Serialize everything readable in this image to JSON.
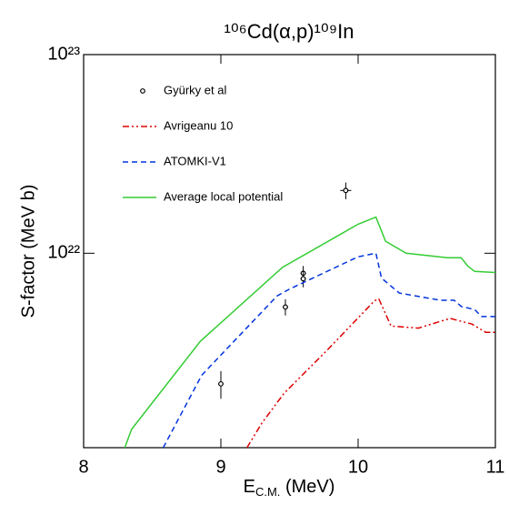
{
  "chart_data": {
    "type": "line",
    "title": "¹⁰⁶Cd(α,p)¹⁰⁹In",
    "x_label": [
      "E",
      "C.M.",
      " (MeV)"
    ],
    "y_label": "S-factor (MeV b)",
    "log_y": true,
    "xlim": [
      8,
      11
    ],
    "xticks": [
      8,
      9,
      10,
      11
    ],
    "ylim": [
      1.05e+21,
      1e+23
    ],
    "yticks": [
      {
        "value": 1e+22,
        "label": "10²²"
      },
      {
        "value": 1e+23,
        "label": "10²³"
      }
    ],
    "legend": "upper left",
    "series": [
      {
        "name": "Gyürky et al",
        "color": "#000000",
        "style": "points",
        "x": [
          9.0,
          9.47,
          9.6,
          9.6,
          9.91
        ],
        "x_errors": [
          0.02,
          0.02,
          0.02,
          0.02,
          0.04
        ],
        "values": [
          2.2e+21,
          5.36e+21,
          7.93e+21,
          7.44e+21,
          2.07e+22
        ],
        "errors": [
          3.5e+20,
          5e+20,
          7e+20,
          7e+20,
          2e+21
        ]
      },
      {
        "name": "Avrigeanu 10",
        "color": "#dd0000",
        "style": "dashdotdot",
        "x": [
          9.19,
          9.3,
          9.46,
          9.77,
          10.12,
          10.15,
          10.24,
          10.44,
          10.67,
          10.83,
          10.93,
          11.0
        ],
        "values": [
          1.05e+21,
          1.4e+21,
          1.97e+21,
          3.23e+21,
          5.77e+21,
          5.9e+21,
          4.3e+21,
          4.2e+21,
          4.7e+21,
          4.4e+21,
          4e+21,
          4e+21
        ]
      },
      {
        "name": "ATOMKI-V1",
        "color": "#0033dd",
        "style": "dashed",
        "x": [
          8.58,
          8.86,
          9.41,
          9.5,
          10.0,
          10.13,
          10.17,
          10.3,
          10.6,
          10.7,
          10.75,
          10.85,
          10.9,
          11.0
        ],
        "values": [
          1.05e+21,
          2.43e+21,
          6.1e+21,
          6.6e+21,
          9.6e+21,
          1e+22,
          7.5e+21,
          6.3e+21,
          5.8e+21,
          5.8e+21,
          5.4e+21,
          5.2e+21,
          4.8e+21,
          4.8e+21
        ]
      },
      {
        "name": "Average local potential",
        "color": "#33cc33",
        "style": "solid",
        "x": [
          8.3,
          8.35,
          8.85,
          9.45,
          10.0,
          10.13,
          10.2,
          10.35,
          10.65,
          10.75,
          10.8,
          10.85,
          11.0
        ],
        "values": [
          1.05e+21,
          1.3e+21,
          3.6e+21,
          8.5e+21,
          1.4e+22,
          1.52e+22,
          1.15e+22,
          1e+22,
          9.5e+21,
          9.5e+21,
          8.6e+21,
          8.1e+21,
          8e+21
        ]
      }
    ]
  }
}
